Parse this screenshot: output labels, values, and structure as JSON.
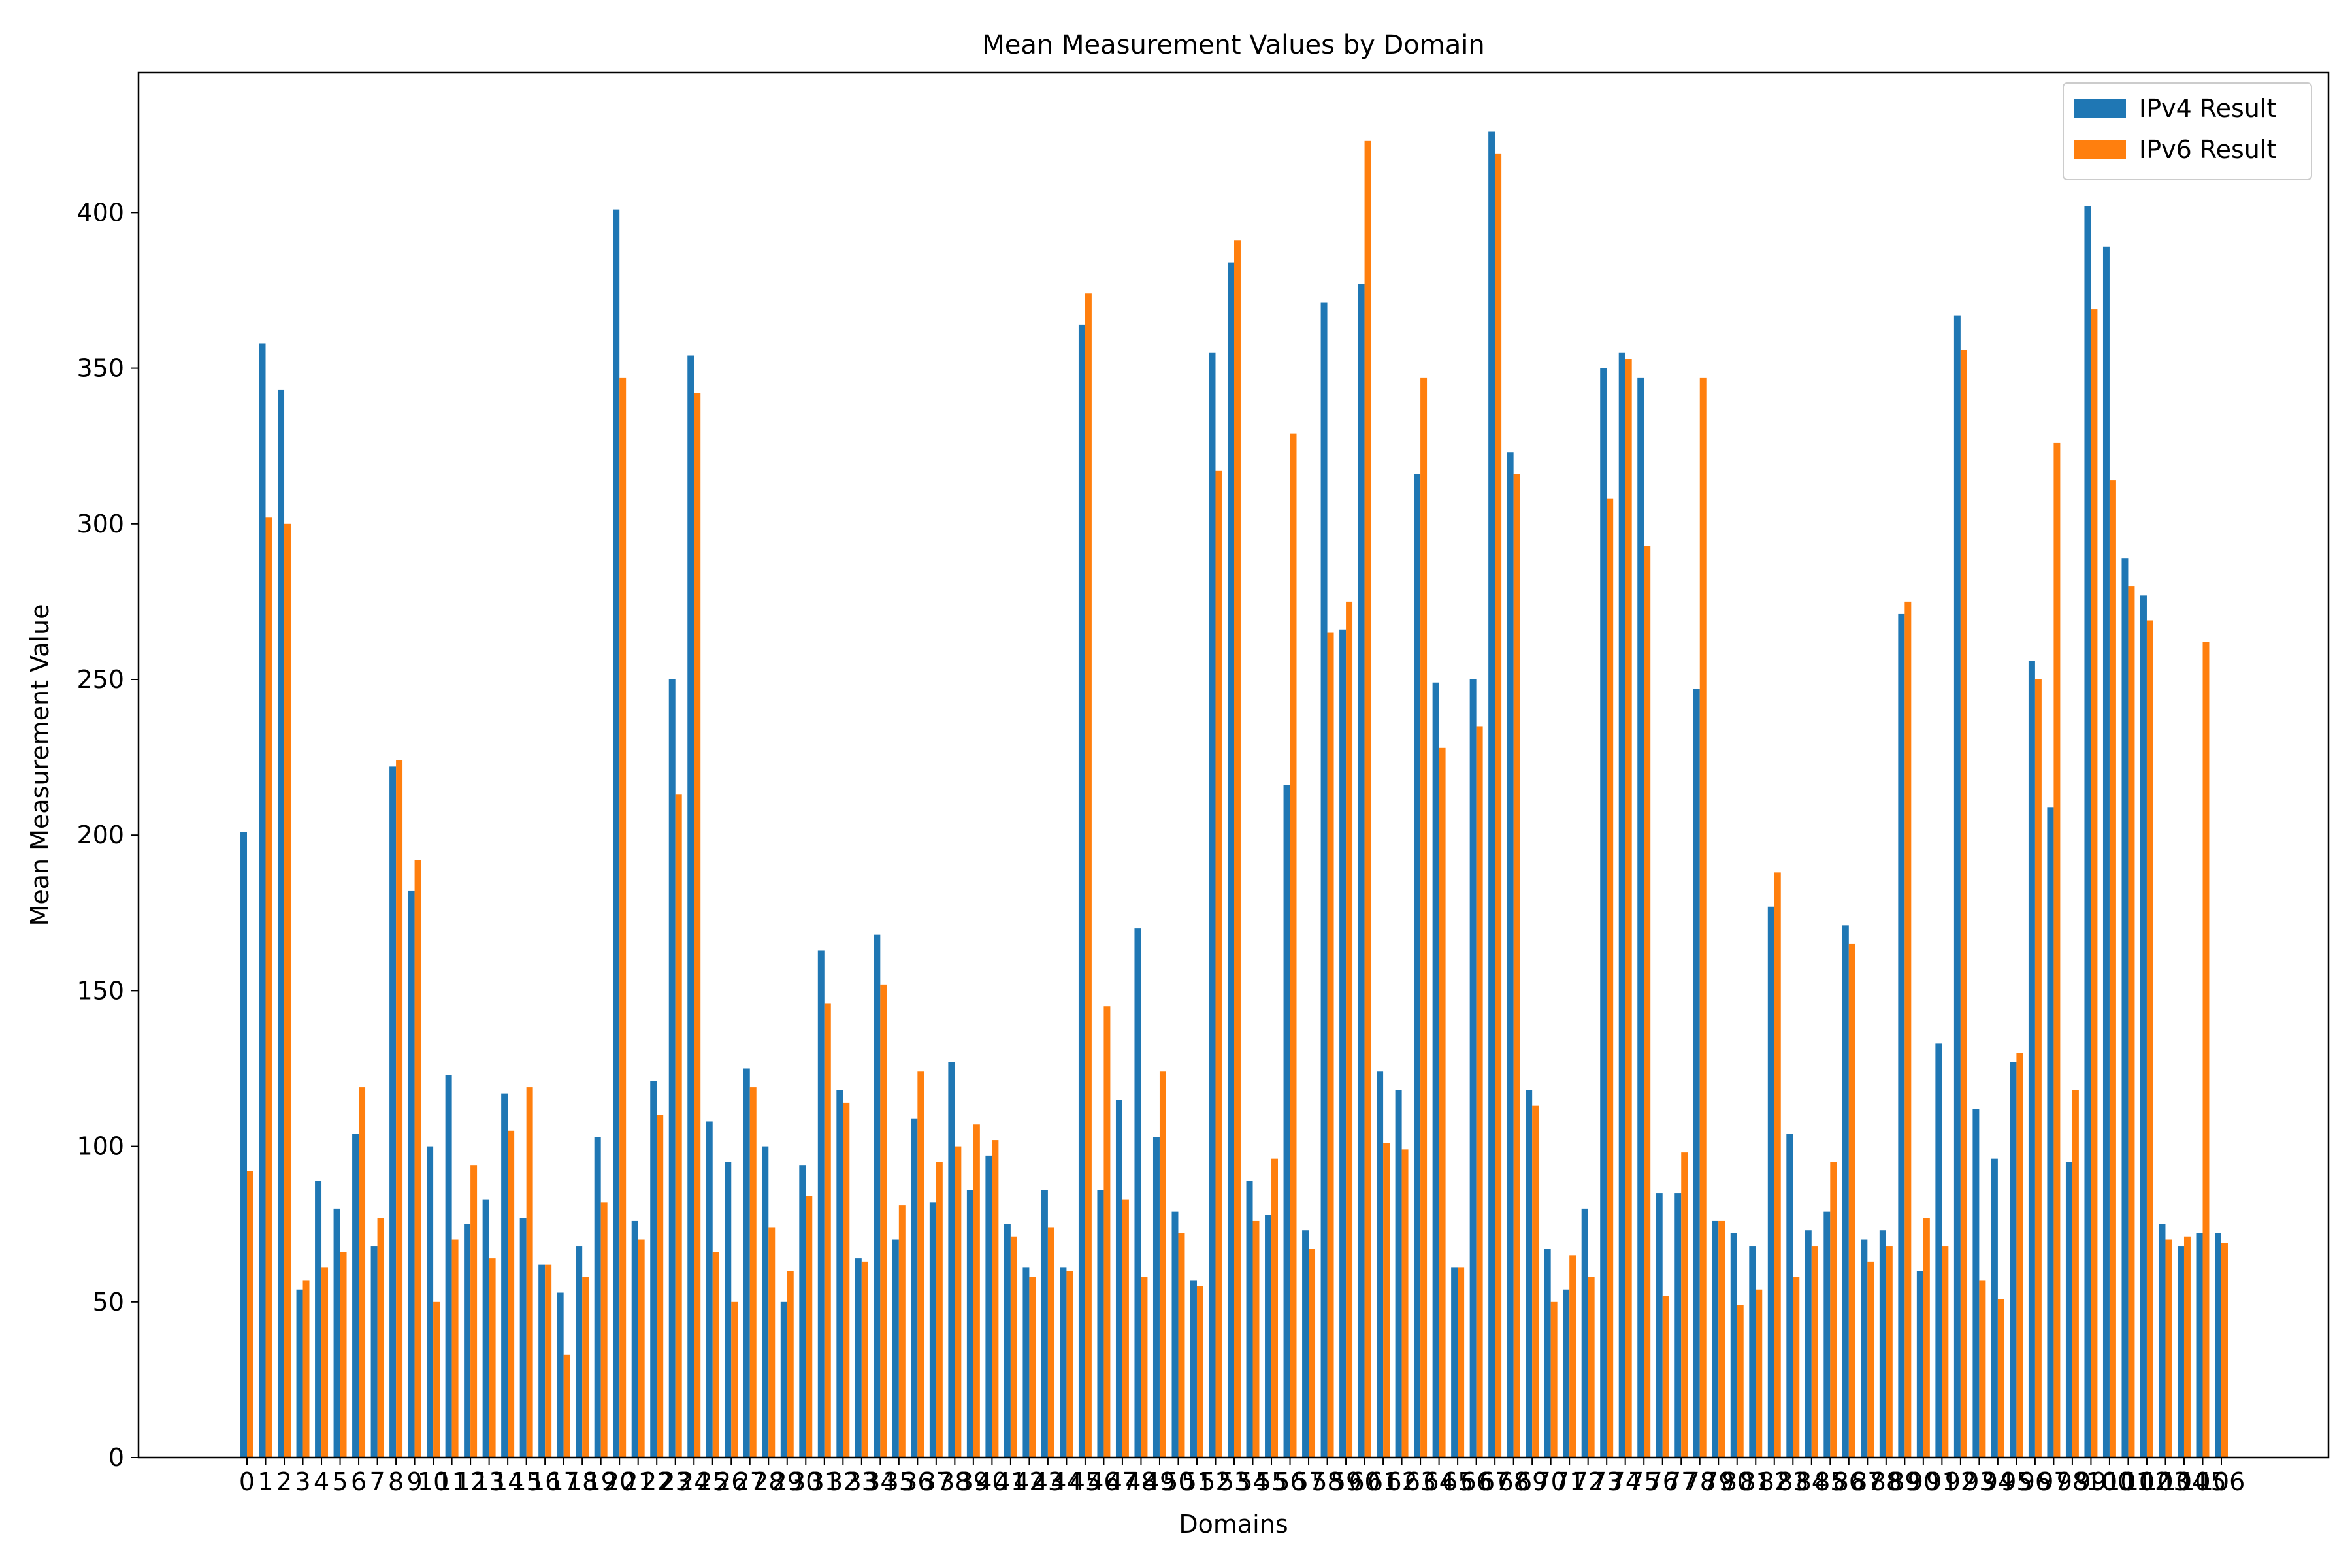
{
  "chart_data": {
    "type": "bar",
    "title": "Mean Measurement Values by Domain",
    "xlabel": "Domains",
    "ylabel": "Mean Measurement Value",
    "ylim": [
      0,
      445
    ],
    "yticks": [
      0,
      50,
      100,
      150,
      200,
      250,
      300,
      350,
      400
    ],
    "grid": false,
    "legend": {
      "position": "top-right"
    },
    "categories": [
      "0",
      "1",
      "2",
      "3",
      "4",
      "5",
      "6",
      "7",
      "8",
      "9",
      "10",
      "11",
      "12",
      "13",
      "14",
      "15",
      "16",
      "17",
      "18",
      "19",
      "20",
      "21",
      "22",
      "23",
      "24",
      "25",
      "26",
      "27",
      "28",
      "29",
      "30",
      "31",
      "32",
      "33",
      "34",
      "35",
      "36",
      "37",
      "38",
      "39",
      "40",
      "41",
      "42",
      "43",
      "44",
      "45",
      "46",
      "47",
      "48",
      "49",
      "50",
      "51",
      "52",
      "53",
      "54",
      "55",
      "56",
      "57",
      "58",
      "59",
      "60",
      "61",
      "62",
      "63",
      "64",
      "65",
      "66",
      "67",
      "68",
      "69",
      "70",
      "71",
      "72",
      "73",
      "74",
      "75",
      "76",
      "77",
      "78",
      "79",
      "80",
      "81",
      "82",
      "83",
      "84",
      "85",
      "86",
      "87",
      "88",
      "89",
      "90",
      "91",
      "92",
      "93",
      "94",
      "95",
      "96",
      "97",
      "98",
      "99",
      "100",
      "101",
      "102",
      "103",
      "104",
      "105",
      "106"
    ],
    "series": [
      {
        "name": "IPv4 Result",
        "color": "#1f77b4",
        "values": [
          201,
          358,
          343,
          54,
          89,
          80,
          104,
          68,
          222,
          182,
          100,
          123,
          75,
          83,
          117,
          77,
          62,
          53,
          68,
          103,
          401,
          76,
          121,
          250,
          354,
          108,
          95,
          125,
          100,
          50,
          94,
          163,
          118,
          64,
          168,
          70,
          109,
          82,
          127,
          86,
          97,
          75,
          61,
          86,
          61,
          364,
          86,
          115,
          170,
          103,
          79,
          57,
          355,
          384,
          89,
          78,
          216,
          73,
          371,
          266,
          377,
          124,
          118,
          316,
          249,
          61,
          250,
          426,
          323,
          118,
          67,
          54,
          80,
          350,
          355,
          347,
          85,
          85,
          247,
          76,
          72,
          68,
          177,
          104,
          73,
          79,
          171,
          70,
          73,
          271,
          60,
          133,
          367,
          112,
          96,
          127,
          256,
          209,
          95,
          402,
          389,
          289,
          277,
          75,
          68,
          72,
          72
        ]
      },
      {
        "name": "IPv6 Result",
        "color": "#ff7f0e",
        "values": [
          92,
          302,
          300,
          57,
          61,
          66,
          119,
          77,
          224,
          192,
          50,
          70,
          94,
          64,
          105,
          119,
          62,
          33,
          58,
          82,
          347,
          70,
          110,
          213,
          342,
          66,
          50,
          119,
          74,
          60,
          84,
          146,
          114,
          63,
          152,
          81,
          124,
          95,
          100,
          107,
          102,
          71,
          58,
          74,
          60,
          374,
          145,
          83,
          58,
          124,
          72,
          55,
          317,
          391,
          76,
          96,
          329,
          67,
          265,
          275,
          423,
          101,
          99,
          347,
          228,
          61,
          235,
          419,
          316,
          113,
          50,
          65,
          58,
          308,
          353,
          293,
          52,
          98,
          347,
          76,
          49,
          54,
          188,
          58,
          68,
          95,
          165,
          63,
          68,
          275,
          77,
          68,
          356,
          57,
          51,
          130,
          250,
          326,
          118,
          369,
          314,
          280,
          269,
          70,
          71,
          262,
          69
        ]
      }
    ]
  }
}
